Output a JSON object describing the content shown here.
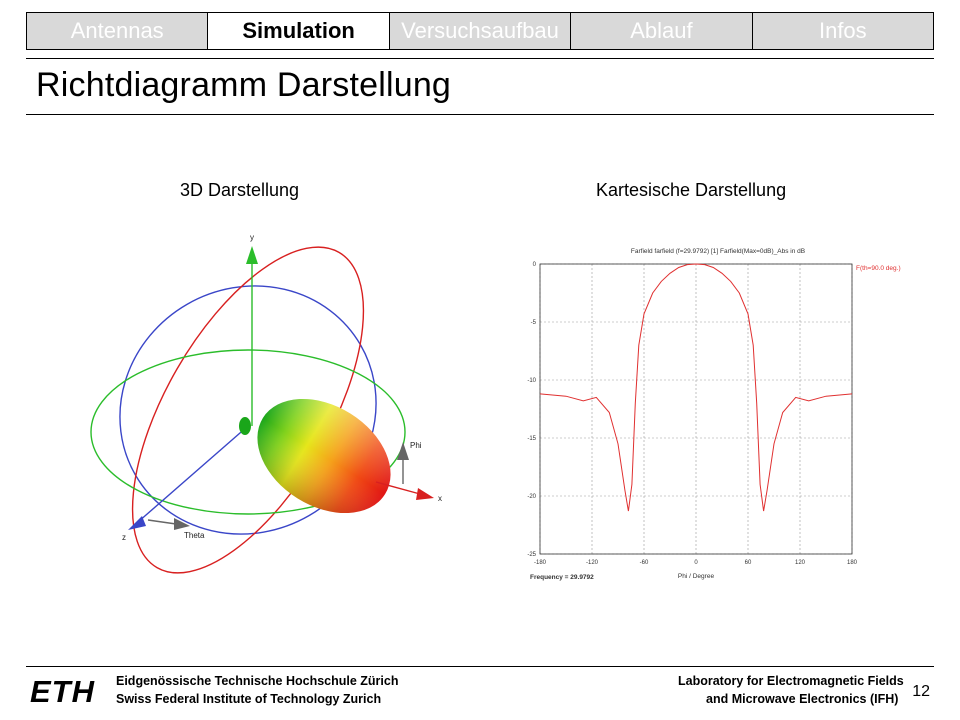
{
  "tabs": [
    {
      "label": "Antennas",
      "active": false
    },
    {
      "label": "Simulation",
      "active": true
    },
    {
      "label": "Versuchsaufbau",
      "active": false
    },
    {
      "label": "Ablauf",
      "active": false
    },
    {
      "label": "Infos",
      "active": false
    }
  ],
  "title": "Richtdiagramm Darstellung",
  "left_figure": {
    "label": "3D Darstellung",
    "axes": {
      "y": "y",
      "x": "x",
      "z": "z",
      "phi": "Phi",
      "theta": "Theta"
    }
  },
  "right_figure": {
    "label": "Kartesische Darstellung"
  },
  "chart_data": {
    "type": "line",
    "title": "Farfield farfield (f=29.9792) [1] Farfield(Max=0dB)_Abs in dB",
    "xlabel": "Phi / Degree",
    "ylabel": "",
    "legend": "F(th=90.0 deg.)",
    "legend_position": "top-right",
    "note": "Frequency = 29.9792",
    "xlim": [
      -180,
      180
    ],
    "ylim": [
      -25,
      0
    ],
    "xticks": [
      "-180",
      "-120",
      "-60",
      "0",
      "60",
      "120",
      "180"
    ],
    "yticks": [
      "0",
      "-5",
      "-10",
      "-15",
      "-20",
      "-25"
    ],
    "grid": true,
    "color": "#e03030",
    "x": [
      -180,
      -150,
      -130,
      -115,
      -100,
      -90,
      -82,
      -78,
      -74,
      -70,
      -66,
      -60,
      -50,
      -40,
      -30,
      -20,
      -10,
      0,
      10,
      20,
      30,
      40,
      50,
      60,
      66,
      70,
      74,
      78,
      82,
      90,
      100,
      115,
      130,
      150,
      180
    ],
    "y": [
      -11.2,
      -11.4,
      -11.8,
      -11.5,
      -12.8,
      -15.5,
      -19.5,
      -21.3,
      -19.0,
      -12.0,
      -7.0,
      -4.3,
      -2.5,
      -1.5,
      -0.8,
      -0.3,
      -0.05,
      0,
      -0.05,
      -0.3,
      -0.8,
      -1.5,
      -2.5,
      -4.3,
      -7.0,
      -12.0,
      -19.0,
      -21.3,
      -19.5,
      -15.5,
      -12.8,
      -11.5,
      -11.8,
      -11.4,
      -11.2
    ]
  },
  "footer": {
    "eth_logo_text": "ETH",
    "eth_line1": "Eidgenössische Technische Hochschule Zürich",
    "eth_line2": "Swiss Federal Institute of Technology Zurich",
    "lab_line1": "Laboratory for Electromagnetic Fields",
    "lab_line2": "and Microwave Electronics (IFH)",
    "page_number": "12"
  }
}
